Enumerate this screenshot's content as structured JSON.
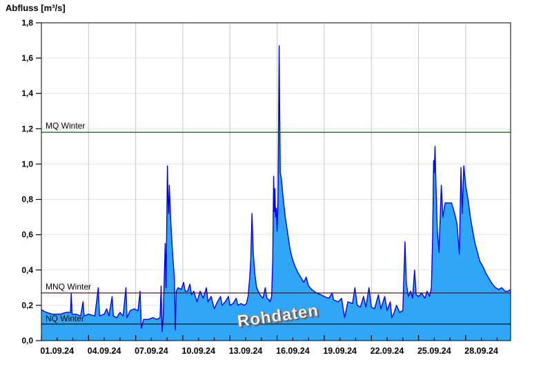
{
  "chart_data": {
    "type": "area",
    "title": "Abfluss [m³/s]",
    "watermark": "Rohdaten",
    "ylabel": "Abfluss [m³/s]",
    "xlabel": "",
    "ylim": [
      0,
      1.8
    ],
    "ytick_step": 0.2,
    "ytick_labels": [
      "0,0",
      "0,2",
      "0,4",
      "0,6",
      "0,8",
      "1,0",
      "1,2",
      "1,4",
      "1,6",
      "1,8"
    ],
    "x_major_labels": [
      "01.09.24",
      "04.09.24",
      "07.09.24",
      "10.09.24",
      "13.09.24",
      "16.09.24",
      "19.09.24",
      "22.09.24",
      "25.09.24",
      "28.09.24"
    ],
    "x_major_step_days": 3,
    "x_total_days": 29.86,
    "grid": true,
    "legend": "none",
    "colors": {
      "area_fill": "#30a6f8",
      "area_stroke": "#0000ee",
      "grid_h": "#e3e3e3",
      "grid_v": "#c6c6c6",
      "axis": "#000000",
      "mq_line": "#067806",
      "mnq_line": "#4d1616",
      "nq_line": "#141414"
    },
    "reference_lines": [
      {
        "label": "MQ Winter",
        "value": 1.18,
        "color": "#067806"
      },
      {
        "label": "MNQ Winter",
        "value": 0.27,
        "color": "#4d1616"
      },
      {
        "label": "NQ Winter",
        "value": 0.094,
        "color": "#141414"
      }
    ],
    "series": [
      {
        "name": "Rohdaten",
        "unit": "m³/s",
        "points_day_value": [
          [
            0,
            0.175
          ],
          [
            0.3,
            0.16
          ],
          [
            0.7,
            0.15
          ],
          [
            1.2,
            0.15
          ],
          [
            1.6,
            0.16
          ],
          [
            1.85,
            0.16
          ],
          [
            1.9,
            0.27
          ],
          [
            1.95,
            0.15
          ],
          [
            2.2,
            0.15
          ],
          [
            2.5,
            0.14
          ],
          [
            2.65,
            0.22
          ],
          [
            2.72,
            0.14
          ],
          [
            3.0,
            0.15
          ],
          [
            3.4,
            0.14
          ],
          [
            3.62,
            0.3
          ],
          [
            3.7,
            0.14
          ],
          [
            4.0,
            0.15
          ],
          [
            4.15,
            0.18
          ],
          [
            4.3,
            0.14
          ],
          [
            4.5,
            0.25
          ],
          [
            4.58,
            0.14
          ],
          [
            4.8,
            0.13
          ],
          [
            5.0,
            0.16
          ],
          [
            5.2,
            0.14
          ],
          [
            5.38,
            0.3
          ],
          [
            5.45,
            0.13
          ],
          [
            5.65,
            0.17
          ],
          [
            5.9,
            0.18
          ],
          [
            6.15,
            0.17
          ],
          [
            6.28,
            0.28
          ],
          [
            6.36,
            0.07
          ],
          [
            6.5,
            0.12
          ],
          [
            6.8,
            0.12
          ],
          [
            7.1,
            0.13
          ],
          [
            7.35,
            0.12
          ],
          [
            7.55,
            0.13
          ],
          [
            7.62,
            0.31
          ],
          [
            7.68,
            0.05
          ],
          [
            7.75,
            0.13
          ],
          [
            7.88,
            0.55
          ],
          [
            7.93,
            0.3
          ],
          [
            7.97,
            0.6
          ],
          [
            8.02,
            0.99
          ],
          [
            8.06,
            0.8
          ],
          [
            8.1,
            0.72
          ],
          [
            8.14,
            0.88
          ],
          [
            8.2,
            0.74
          ],
          [
            8.28,
            0.6
          ],
          [
            8.38,
            0.45
          ],
          [
            8.46,
            0.36
          ],
          [
            8.52,
            0.06
          ],
          [
            8.58,
            0.28
          ],
          [
            8.7,
            0.3
          ],
          [
            8.9,
            0.29
          ],
          [
            9.05,
            0.33
          ],
          [
            9.15,
            0.28
          ],
          [
            9.3,
            0.28
          ],
          [
            9.45,
            0.32
          ],
          [
            9.55,
            0.26
          ],
          [
            9.7,
            0.28
          ],
          [
            9.9,
            0.22
          ],
          [
            10.1,
            0.28
          ],
          [
            10.3,
            0.24
          ],
          [
            10.5,
            0.3
          ],
          [
            10.6,
            0.22
          ],
          [
            10.8,
            0.25
          ],
          [
            11.0,
            0.18
          ],
          [
            11.2,
            0.22
          ],
          [
            11.4,
            0.25
          ],
          [
            11.5,
            0.2
          ],
          [
            11.7,
            0.22
          ],
          [
            11.9,
            0.25
          ],
          [
            12.0,
            0.2
          ],
          [
            12.2,
            0.21
          ],
          [
            12.4,
            0.24
          ],
          [
            12.5,
            0.2
          ],
          [
            12.7,
            0.21
          ],
          [
            12.9,
            0.2
          ],
          [
            13.05,
            0.21
          ],
          [
            13.15,
            0.25
          ],
          [
            13.25,
            0.35
          ],
          [
            13.32,
            0.45
          ],
          [
            13.4,
            0.72
          ],
          [
            13.48,
            0.5
          ],
          [
            13.58,
            0.38
          ],
          [
            13.7,
            0.3
          ],
          [
            13.9,
            0.26
          ],
          [
            14.1,
            0.24
          ],
          [
            14.25,
            0.3
          ],
          [
            14.35,
            0.24
          ],
          [
            14.5,
            0.23
          ],
          [
            14.55,
            0.22
          ],
          [
            14.65,
            0.25
          ],
          [
            14.72,
            0.45
          ],
          [
            14.78,
            0.93
          ],
          [
            14.82,
            0.73
          ],
          [
            14.86,
            0.86
          ],
          [
            14.9,
            0.7
          ],
          [
            14.95,
            0.75
          ],
          [
            15.0,
            0.62
          ],
          [
            15.06,
            0.8
          ],
          [
            15.1,
            1.3
          ],
          [
            15.13,
            1.67
          ],
          [
            15.17,
            1.25
          ],
          [
            15.2,
            0.95
          ],
          [
            15.27,
            0.92
          ],
          [
            15.34,
            0.85
          ],
          [
            15.42,
            0.78
          ],
          [
            15.52,
            0.7
          ],
          [
            15.62,
            0.64
          ],
          [
            15.72,
            0.58
          ],
          [
            15.82,
            0.52
          ],
          [
            15.95,
            0.47
          ],
          [
            16.1,
            0.43
          ],
          [
            16.3,
            0.39
          ],
          [
            16.5,
            0.36
          ],
          [
            16.7,
            0.33
          ],
          [
            16.85,
            0.36
          ],
          [
            17.0,
            0.31
          ],
          [
            17.2,
            0.29
          ],
          [
            17.5,
            0.27
          ],
          [
            17.8,
            0.26
          ],
          [
            18.0,
            0.25
          ],
          [
            18.3,
            0.24
          ],
          [
            18.5,
            0.27
          ],
          [
            18.6,
            0.23
          ],
          [
            18.9,
            0.22
          ],
          [
            19.1,
            0.24
          ],
          [
            19.3,
            0.13
          ],
          [
            19.5,
            0.22
          ],
          [
            19.8,
            0.21
          ],
          [
            19.95,
            0.3
          ],
          [
            20.1,
            0.2
          ],
          [
            20.3,
            0.19
          ],
          [
            20.5,
            0.25
          ],
          [
            20.65,
            0.19
          ],
          [
            20.85,
            0.3
          ],
          [
            21.0,
            0.19
          ],
          [
            21.2,
            0.18
          ],
          [
            21.45,
            0.26
          ],
          [
            21.6,
            0.18
          ],
          [
            21.85,
            0.25
          ],
          [
            22.0,
            0.17
          ],
          [
            22.2,
            0.22
          ],
          [
            22.3,
            0.13
          ],
          [
            22.45,
            0.16
          ],
          [
            22.6,
            0.2
          ],
          [
            22.8,
            0.16
          ],
          [
            23.0,
            0.17
          ],
          [
            23.08,
            0.4
          ],
          [
            23.14,
            0.56
          ],
          [
            23.22,
            0.33
          ],
          [
            23.35,
            0.25
          ],
          [
            23.5,
            0.28
          ],
          [
            23.62,
            0.24
          ],
          [
            23.75,
            0.4
          ],
          [
            23.85,
            0.26
          ],
          [
            24.0,
            0.25
          ],
          [
            24.2,
            0.27
          ],
          [
            24.4,
            0.24
          ],
          [
            24.55,
            0.28
          ],
          [
            24.7,
            0.25
          ],
          [
            24.82,
            0.3
          ],
          [
            24.9,
            0.6
          ],
          [
            24.96,
            1.02
          ],
          [
            25.0,
            0.95
          ],
          [
            25.05,
            1.1
          ],
          [
            25.12,
            0.85
          ],
          [
            25.2,
            0.62
          ],
          [
            25.3,
            0.5
          ],
          [
            25.45,
            0.88
          ],
          [
            25.55,
            0.7
          ],
          [
            25.7,
            0.78
          ],
          [
            25.9,
            0.78
          ],
          [
            26.1,
            0.78
          ],
          [
            26.3,
            0.72
          ],
          [
            26.45,
            0.66
          ],
          [
            26.6,
            0.49
          ],
          [
            26.7,
            0.98
          ],
          [
            26.78,
            0.72
          ],
          [
            26.88,
            0.99
          ],
          [
            27.0,
            0.88
          ],
          [
            27.15,
            0.8
          ],
          [
            27.3,
            0.7
          ],
          [
            27.45,
            0.62
          ],
          [
            27.6,
            0.55
          ],
          [
            27.75,
            0.5
          ],
          [
            27.9,
            0.45
          ],
          [
            28.1,
            0.42
          ],
          [
            28.3,
            0.38
          ],
          [
            28.5,
            0.35
          ],
          [
            28.7,
            0.32
          ],
          [
            28.9,
            0.3
          ],
          [
            29.1,
            0.29
          ],
          [
            29.3,
            0.3
          ],
          [
            29.5,
            0.28
          ],
          [
            29.7,
            0.28
          ],
          [
            29.86,
            0.29
          ]
        ]
      }
    ]
  }
}
